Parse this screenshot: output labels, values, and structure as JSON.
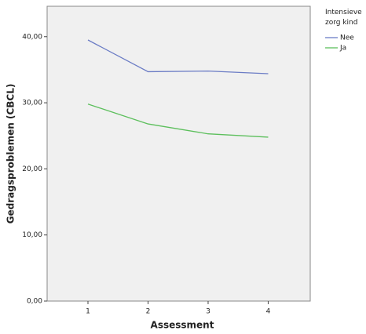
{
  "chart_data": {
    "type": "line",
    "x_label": "Assessment",
    "y_label": "Gedragsproblemen (CBCL)",
    "legend_title": "Intensieve zorg kind",
    "x": [
      1,
      2,
      3,
      4
    ],
    "series": [
      {
        "name": "Nee",
        "color": "#6b7cc5",
        "values": [
          39.5,
          34.7,
          34.8,
          34.4
        ]
      },
      {
        "name": "Ja",
        "color": "#5cbf5c",
        "values": [
          29.8,
          26.8,
          25.3,
          24.8
        ]
      }
    ],
    "xlim": [
      0.32,
      4.7
    ],
    "xticks": [
      1,
      2,
      3,
      4
    ],
    "ylim": [
      0,
      44.6
    ],
    "yticks": [
      {
        "value": 0,
        "label": "0,00"
      },
      {
        "value": 10,
        "label": "10,00"
      },
      {
        "value": 20,
        "label": "20,00"
      },
      {
        "value": 30,
        "label": "30,00"
      },
      {
        "value": 40,
        "label": "40,00"
      }
    ],
    "legend": "right"
  }
}
